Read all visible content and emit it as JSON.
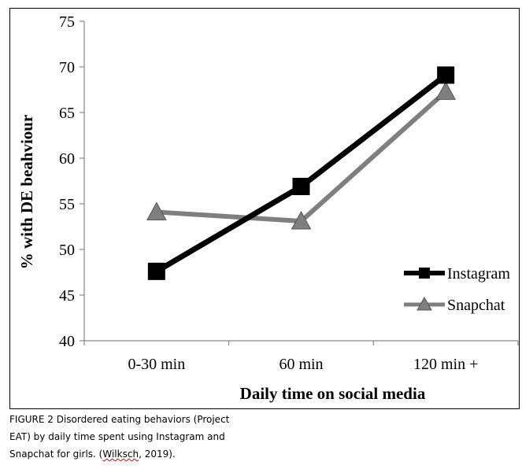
{
  "chart_data": {
    "type": "line",
    "categories": [
      "0-30 min",
      "60 min",
      "120 min +"
    ],
    "series": [
      {
        "name": "Instagram",
        "values": [
          47.6,
          56.9,
          69.1
        ],
        "color": "#000000",
        "marker": "square"
      },
      {
        "name": "Snapchat",
        "values": [
          54.1,
          53.1,
          67.3
        ],
        "color": "#7f7f7f",
        "marker": "triangle"
      }
    ],
    "xlabel": "Daily time on social media",
    "ylabel": "% with DE beahviour",
    "ylim": [
      40,
      75
    ],
    "yticks": [
      40,
      45,
      50,
      55,
      60,
      65,
      70,
      75
    ],
    "grid": false,
    "legend_position": "right"
  },
  "caption": {
    "lines": [
      "FIGURE 2 Disordered eating behaviors (Project",
      "EAT) by daily time spent using Instagram and"
    ],
    "last_line_prefix": "Snapchat for girls. (",
    "last_line_citation": "Wilksch",
    "last_line_suffix": ", 2019)."
  }
}
